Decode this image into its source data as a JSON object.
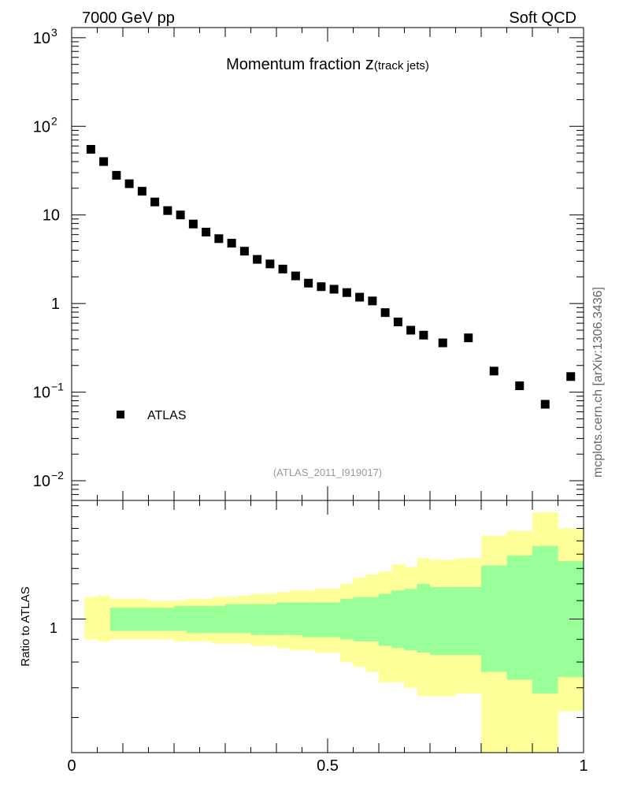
{
  "header": {
    "left": "7000 GeV pp",
    "right": "Soft QCD"
  },
  "chart_data": [
    {
      "type": "scatter",
      "title_main": "Momentum fraction ",
      "title_var": "z",
      "title_sub": "(track jets)",
      "ylog": true,
      "ylim": [
        0.006,
        1300
      ],
      "xlim": [
        0,
        1
      ],
      "grid": false,
      "legend_position": "bottom-left",
      "analysis_label": "(ATLAS_2011_I919017)",
      "side_label": "mcplots.cern.ch [arXiv:1306.3436]",
      "y_ticks": [
        {
          "v": 0.01,
          "base": "10",
          "exp": "−2"
        },
        {
          "v": 0.1,
          "base": "10",
          "exp": "−1"
        },
        {
          "v": 1,
          "base": "1",
          "exp": ""
        },
        {
          "v": 10,
          "base": "10",
          "exp": ""
        },
        {
          "v": 100,
          "base": "10",
          "exp": "2"
        },
        {
          "v": 1000,
          "base": "10",
          "exp": "3"
        }
      ],
      "series": [
        {
          "name": "ATLAS",
          "color": "#000000",
          "x": [
            0.0375,
            0.0625,
            0.0875,
            0.1125,
            0.1375,
            0.1625,
            0.1875,
            0.2125,
            0.2375,
            0.2625,
            0.2875,
            0.3125,
            0.3375,
            0.3625,
            0.3875,
            0.4125,
            0.4375,
            0.4625,
            0.4875,
            0.5125,
            0.5375,
            0.5625,
            0.5875,
            0.6125,
            0.6375,
            0.6625,
            0.6875,
            0.725,
            0.775,
            0.825,
            0.875,
            0.925,
            0.975
          ],
          "y": [
            55,
            40,
            28,
            22.5,
            18.5,
            14,
            11.2,
            10,
            7.9,
            6.4,
            5.4,
            4.8,
            3.9,
            3.15,
            2.8,
            2.45,
            2.05,
            1.7,
            1.55,
            1.45,
            1.33,
            1.18,
            1.07,
            0.79,
            0.62,
            0.5,
            0.44,
            0.36,
            0.41,
            0.173,
            0.118,
            0.073,
            0.15
          ]
        }
      ]
    },
    {
      "type": "area",
      "ylabel": "Ratio to ATLAS",
      "ylog": true,
      "ylim": [
        0.5,
        1.85
      ],
      "xlim": [
        0,
        1
      ],
      "x_ticks": [
        {
          "v": 0,
          "label": "0"
        },
        {
          "v": 0.5,
          "label": "0.5"
        },
        {
          "v": 1,
          "label": "1"
        }
      ],
      "y_ticks": [
        {
          "v": 1,
          "label": "1"
        }
      ],
      "bands": {
        "edges": [
          0.025,
          0.05,
          0.075,
          0.1,
          0.125,
          0.15,
          0.175,
          0.2,
          0.225,
          0.25,
          0.275,
          0.3,
          0.325,
          0.35,
          0.375,
          0.4,
          0.425,
          0.45,
          0.475,
          0.5,
          0.525,
          0.55,
          0.575,
          0.6,
          0.625,
          0.65,
          0.675,
          0.7,
          0.75,
          0.8,
          0.85,
          0.9,
          0.95,
          1.0
        ],
        "yellow_color": "#ffff99",
        "green_color": "#99ff99",
        "yellow_up": [
          1.12,
          1.13,
          1.11,
          1.11,
          1.11,
          1.1,
          1.1,
          1.1,
          1.11,
          1.11,
          1.12,
          1.12,
          1.13,
          1.14,
          1.14,
          1.15,
          1.16,
          1.16,
          1.17,
          1.17,
          1.2,
          1.24,
          1.26,
          1.28,
          1.33,
          1.31,
          1.37,
          1.36,
          1.37,
          1.54,
          1.58,
          1.74,
          1.6
        ],
        "yellow_lo": [
          0.9,
          0.89,
          0.9,
          0.9,
          0.9,
          0.9,
          0.9,
          0.89,
          0.89,
          0.89,
          0.88,
          0.88,
          0.88,
          0.87,
          0.87,
          0.86,
          0.85,
          0.85,
          0.84,
          0.84,
          0.8,
          0.78,
          0.76,
          0.72,
          0.72,
          0.7,
          0.67,
          0.67,
          0.68,
          0.5,
          0.5,
          0.5,
          0.62
        ],
        "green_up": [
          0,
          0,
          1.06,
          1.06,
          1.06,
          1.06,
          1.06,
          1.07,
          1.07,
          1.07,
          1.07,
          1.08,
          1.08,
          1.08,
          1.08,
          1.09,
          1.09,
          1.09,
          1.09,
          1.09,
          1.11,
          1.12,
          1.12,
          1.14,
          1.16,
          1.17,
          1.2,
          1.18,
          1.18,
          1.32,
          1.39,
          1.46,
          1.35
        ],
        "green_lo": [
          0,
          0,
          0.94,
          0.94,
          0.94,
          0.94,
          0.94,
          0.94,
          0.93,
          0.93,
          0.93,
          0.93,
          0.93,
          0.92,
          0.92,
          0.92,
          0.92,
          0.91,
          0.91,
          0.91,
          0.9,
          0.89,
          0.89,
          0.87,
          0.86,
          0.85,
          0.84,
          0.83,
          0.83,
          0.76,
          0.73,
          0.68,
          0.74
        ]
      }
    }
  ]
}
